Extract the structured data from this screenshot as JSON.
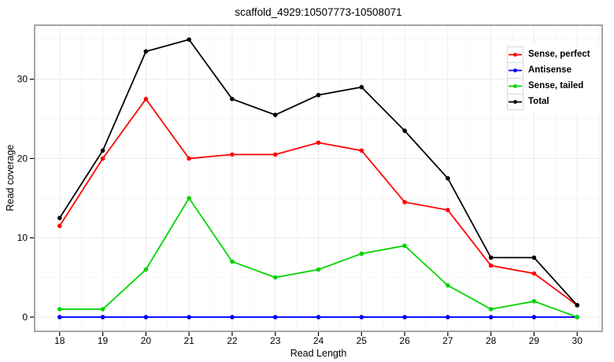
{
  "chart_data": {
    "type": "line",
    "title": "scaffold_4929:10507773-10508071",
    "xlabel": "Read Length",
    "ylabel": "Read coverage",
    "x": [
      18,
      19,
      20,
      21,
      22,
      23,
      24,
      25,
      26,
      27,
      28,
      29,
      30
    ],
    "xticks": [
      18,
      19,
      20,
      21,
      22,
      23,
      24,
      25,
      26,
      27,
      28,
      29,
      30
    ],
    "yticks": [
      0,
      10,
      20,
      30
    ],
    "xlim": [
      17.42,
      30.58
    ],
    "ylim": [
      -1.79,
      36.81
    ],
    "grid": true,
    "legend_position": "top-right-inside",
    "series": [
      {
        "name": "Sense, perfect",
        "color": "#ff0000",
        "values": [
          11.5,
          20,
          27.5,
          20,
          20.5,
          20.5,
          22,
          21,
          14.5,
          13.5,
          6.5,
          5.5,
          1.5
        ]
      },
      {
        "name": "Antisense",
        "color": "#0000ff",
        "values": [
          0,
          0,
          0,
          0,
          0,
          0,
          0,
          0,
          0,
          0,
          0,
          0,
          0
        ]
      },
      {
        "name": "Sense, tailed",
        "color": "#00d400",
        "values": [
          1,
          1,
          6,
          15,
          7,
          5,
          6,
          8,
          9,
          4,
          1,
          2,
          0
        ]
      },
      {
        "name": "Total",
        "color": "#000000",
        "values": [
          12.5,
          21,
          33.5,
          35,
          27.5,
          25.5,
          28,
          29,
          23.5,
          17.5,
          7.5,
          7.5,
          1.5
        ]
      }
    ],
    "style": {
      "frame_color": "#9b9b9b",
      "grid_major_color": "#ebebeb",
      "grid_minor_color": "#f6f6f6",
      "tick_color": "#000000"
    }
  }
}
